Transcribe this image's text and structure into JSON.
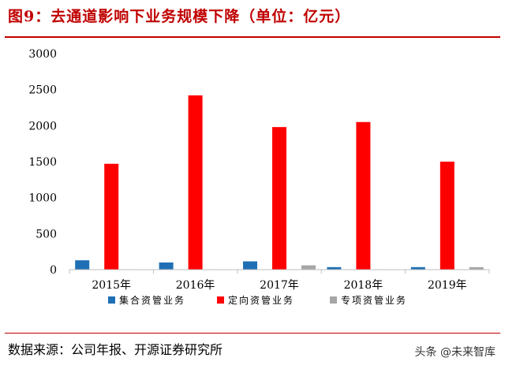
{
  "title": "图9：去通道影响下业务规模下降（单位：亿元）",
  "source": "数据来源：公司年报、开源证券研究所",
  "watermark": "头条 @未来智库",
  "colors": {
    "title": "#c00000",
    "rule": "#c00000"
  },
  "chart_data": {
    "type": "bar",
    "categories": [
      "2015年",
      "2016年",
      "2017年",
      "2018年",
      "2019年"
    ],
    "series": [
      {
        "name": "集合资管业务",
        "color": "#1f6fb5",
        "values": [
          130,
          100,
          115,
          35,
          35
        ]
      },
      {
        "name": "定向资管业务",
        "color": "#ff0000",
        "values": [
          1470,
          2420,
          1980,
          2050,
          1500
        ]
      },
      {
        "name": "专项资管业务",
        "color": "#a6a6a6",
        "values": [
          5,
          5,
          60,
          5,
          35
        ]
      }
    ],
    "yticks": [
      0,
      500,
      1000,
      1500,
      2000,
      2500,
      3000
    ],
    "ylim": [
      0,
      3000
    ],
    "grid": false,
    "legend": "bottom"
  }
}
